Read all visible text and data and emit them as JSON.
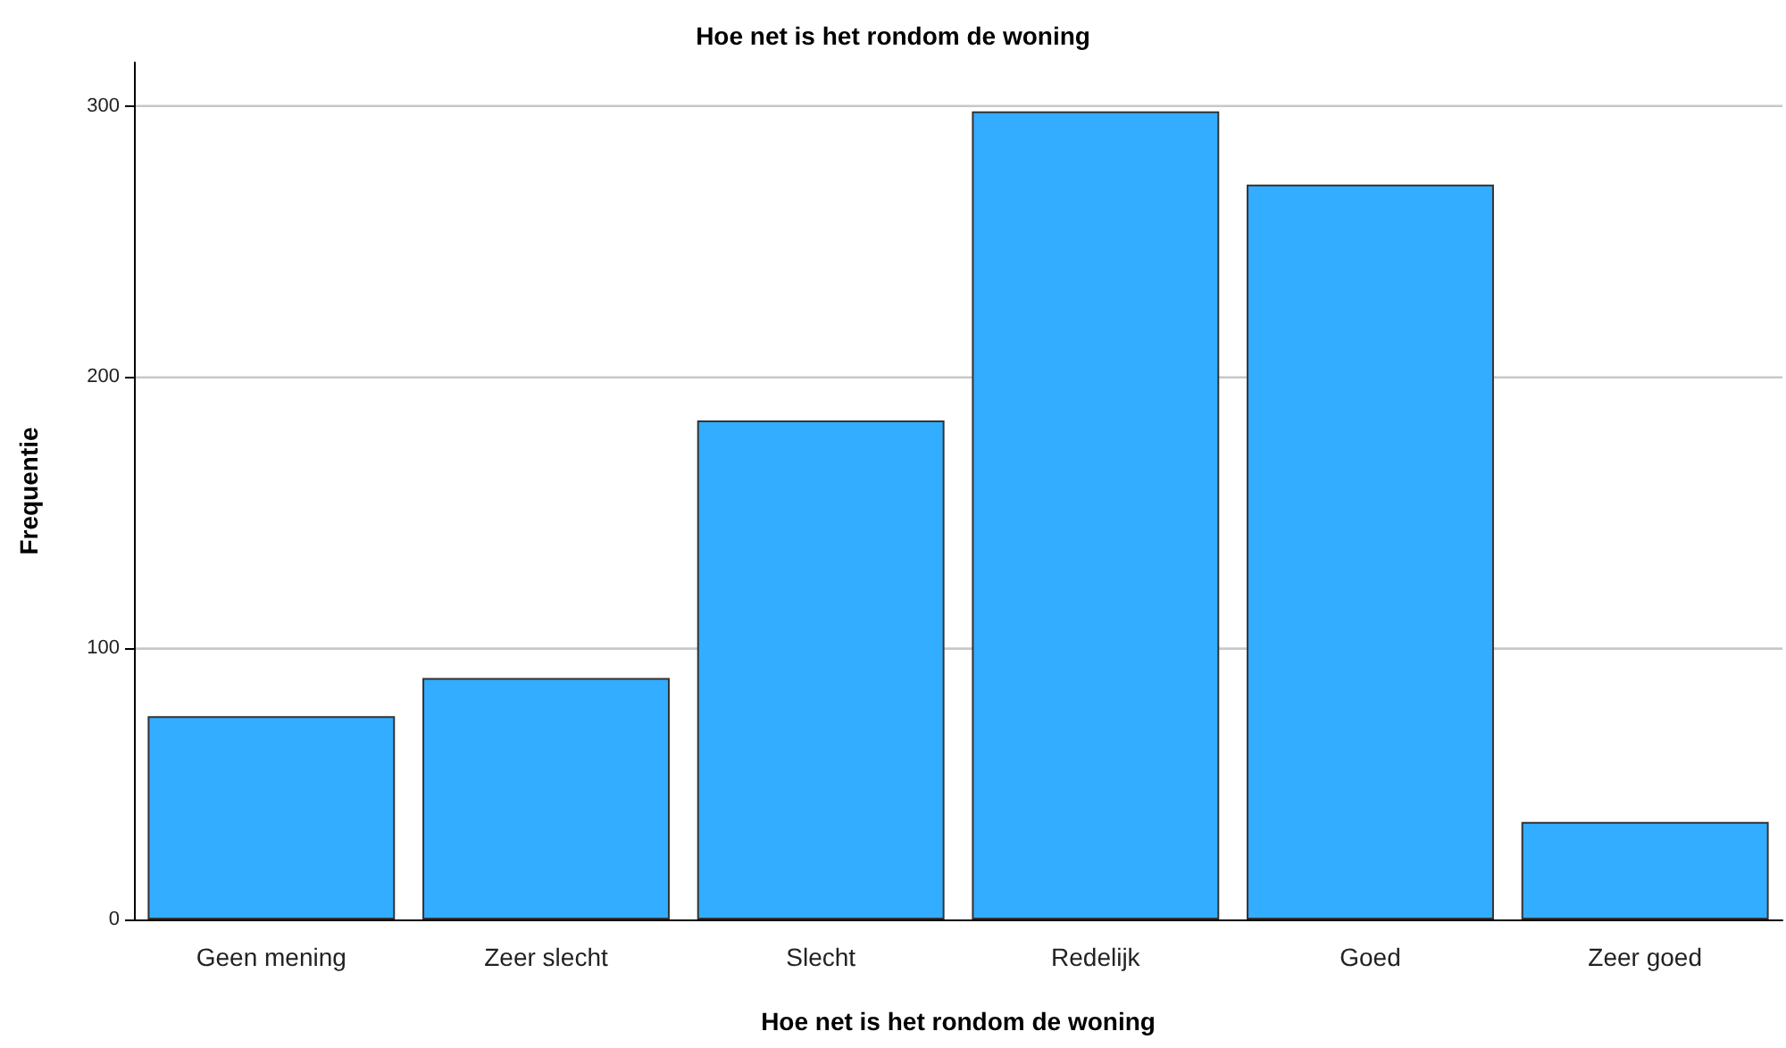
{
  "chart_data": {
    "type": "bar",
    "title": "Hoe net is het rondom de woning",
    "xlabel": "Hoe net is het rondom de woning",
    "ylabel": "Frequentie",
    "categories": [
      "Geen mening",
      "Zeer slecht",
      "Slecht",
      "Redelijk",
      "Goed",
      "Zeer goed"
    ],
    "values": [
      75,
      89,
      184,
      298,
      271,
      36
    ],
    "color": "#33adff",
    "ylim": [
      0,
      316
    ],
    "yticks": [
      0,
      100,
      200,
      300
    ],
    "grid": "y"
  }
}
